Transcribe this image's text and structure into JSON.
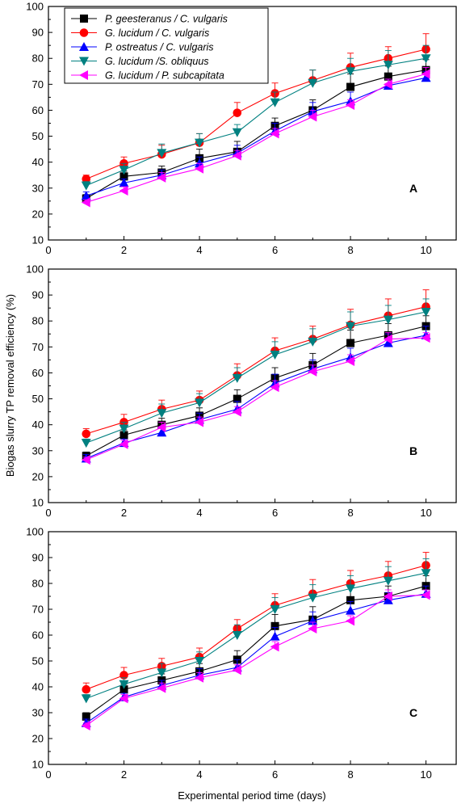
{
  "chart_data": {
    "type": "line",
    "x": [
      1,
      2,
      3,
      4,
      5,
      6,
      7,
      8,
      9,
      10
    ],
    "xlim": [
      0,
      10.8
    ],
    "ylim": [
      10,
      100
    ],
    "xticks": [
      0,
      2,
      4,
      6,
      8,
      10
    ],
    "yticks": [
      10,
      20,
      30,
      40,
      50,
      60,
      70,
      80,
      90,
      100
    ],
    "xlabel": "Experimental period time (days)",
    "ylabel": "Biogas slurry TP removal efficiency (%)",
    "legend": {
      "placement": "top-left",
      "entries": [
        "P. geesteranus / C. vulgaris",
        "G. lucidum / C. vulgaris",
        "P. ostreatus / C. vulgaris",
        "G. lucidum /S. obliquus",
        "G. lucidum / P. subcapitata"
      ]
    },
    "styles": [
      {
        "color": "#000000",
        "marker": "square"
      },
      {
        "color": "#ff0000",
        "marker": "circle"
      },
      {
        "color": "#0000ff",
        "marker": "triangle-up"
      },
      {
        "color": "#008080",
        "marker": "triangle-down"
      },
      {
        "color": "#ff00ff",
        "marker": "triangle-left"
      }
    ],
    "panels": [
      {
        "label": "A",
        "series": [
          {
            "name": "P. geesteranus / C. vulgaris",
            "values": [
              26,
              34.5,
              36,
              41.5,
              44,
              54,
              60,
              69,
              73,
              75.5
            ],
            "errors": [
              1.5,
              2,
              2.5,
              3.5,
              4,
              3,
              4,
              5,
              4,
              4
            ]
          },
          {
            "name": "G. lucidum / C. vulgaris",
            "values": [
              33.5,
              39.5,
              43,
              47.5,
              59,
              66.5,
              71.5,
              76.5,
              80,
              83.5
            ],
            "errors": [
              1.5,
              2.5,
              3.5,
              3.5,
              4,
              4,
              4,
              5.5,
              4.5,
              6
            ]
          },
          {
            "name": "P. ostreatus / C. vulgaris",
            "values": [
              27,
              32,
              35,
              39.5,
              43.5,
              52,
              59.5,
              63.5,
              69.5,
              72.5
            ],
            "errors": [
              1.5,
              1.5,
              2,
              2.5,
              3,
              3,
              3.5,
              3.5,
              2.5,
              2.5
            ]
          },
          {
            "name": "G. lucidum /S. obliquus",
            "values": [
              31,
              37,
              43.5,
              47.5,
              51.5,
              63,
              70.5,
              75,
              77.5,
              80
            ],
            "errors": [
              1.5,
              2.5,
              3.5,
              3.5,
              3,
              4,
              5,
              5,
              5.5,
              5
            ]
          },
          {
            "name": "G. lucidum / P. subcapitata",
            "values": [
              24.5,
              29,
              34,
              37.5,
              42.5,
              51,
              57.5,
              62,
              70,
              74
            ],
            "errors": [
              1,
              1.5,
              2,
              2,
              2,
              2,
              2.5,
              2,
              2,
              2.5
            ]
          }
        ]
      },
      {
        "label": "B",
        "series": [
          {
            "name": "P. geesteranus / C. vulgaris",
            "values": [
              28,
              36,
              40,
              43.5,
              50,
              58,
              63,
              71.5,
              74.5,
              78
            ],
            "errors": [
              1.5,
              2,
              2.5,
              3,
              3.5,
              4,
              4.5,
              5,
              4.5,
              4
            ]
          },
          {
            "name": "G. lucidum / C. vulgaris",
            "values": [
              36.5,
              41,
              46,
              49.5,
              59,
              68.5,
              73,
              78.5,
              82,
              85.5
            ],
            "errors": [
              2,
              3,
              3.5,
              3.5,
              4.5,
              5,
              5,
              6,
              6.5,
              6.5
            ]
          },
          {
            "name": "P. ostreatus / C. vulgaris",
            "values": [
              27,
              33,
              37,
              42,
              46,
              56,
              61.5,
              66,
              71.5,
              74.5
            ],
            "errors": [
              1.5,
              1.5,
              2,
              2.5,
              3,
              3.5,
              3.5,
              3.5,
              3.5,
              3.5
            ]
          },
          {
            "name": "G. lucidum /S. obliquus",
            "values": [
              33,
              38.5,
              44.5,
              48.5,
              58,
              67,
              72,
              78,
              80.5,
              83.5
            ],
            "errors": [
              1.5,
              2.5,
              3.5,
              3.5,
              4,
              5,
              5,
              5.5,
              5.5,
              5
            ]
          },
          {
            "name": "G. lucidum / P. subcapitata",
            "values": [
              26.5,
              32.5,
              39,
              41,
              45,
              54.5,
              60.5,
              64.5,
              73,
              73.5
            ],
            "errors": [
              1,
              1.5,
              2,
              2,
              2,
              2.5,
              2.5,
              2.5,
              2.5,
              2
            ]
          }
        ]
      },
      {
        "label": "C",
        "series": [
          {
            "name": "P. geesteranus / C. vulgaris",
            "values": [
              28.5,
              39,
              42.5,
              46,
              50.5,
              63.5,
              66,
              73.5,
              75,
              79
            ],
            "errors": [
              1.5,
              2,
              2.5,
              3,
              3.5,
              4.5,
              5,
              5,
              4,
              4
            ]
          },
          {
            "name": "G. lucidum / C. vulgaris",
            "values": [
              39,
              44.5,
              48,
              51.5,
              62.5,
              71.5,
              76,
              80,
              83,
              87
            ],
            "errors": [
              2.5,
              3,
              3,
              3.5,
              3.5,
              4.5,
              5.5,
              5,
              5.5,
              5
            ]
          },
          {
            "name": "P. ostreatus / C. vulgaris",
            "values": [
              26,
              36,
              40.5,
              44.5,
              47.5,
              59.5,
              65.5,
              69.5,
              73.5,
              76
            ],
            "errors": [
              1.5,
              1.5,
              2,
              2.5,
              3,
              3.5,
              3.5,
              3.5,
              3,
              3
            ]
          },
          {
            "name": "G. lucidum /S. obliquus",
            "values": [
              35.5,
              41,
              45.5,
              50,
              60,
              70,
              74.5,
              78,
              81,
              84
            ],
            "errors": [
              1.5,
              2.5,
              3.5,
              3.5,
              4,
              4.5,
              5,
              5,
              5.5,
              5.5
            ]
          },
          {
            "name": "G. lucidum / P. subcapitata",
            "values": [
              25,
              35.5,
              39.5,
              43.5,
              46.5,
              55.5,
              62.5,
              65.5,
              75,
              75.5
            ],
            "errors": [
              1,
              1.5,
              2,
              2,
              2,
              2,
              2.5,
              2,
              2.5,
              2
            ]
          }
        ]
      }
    ]
  }
}
